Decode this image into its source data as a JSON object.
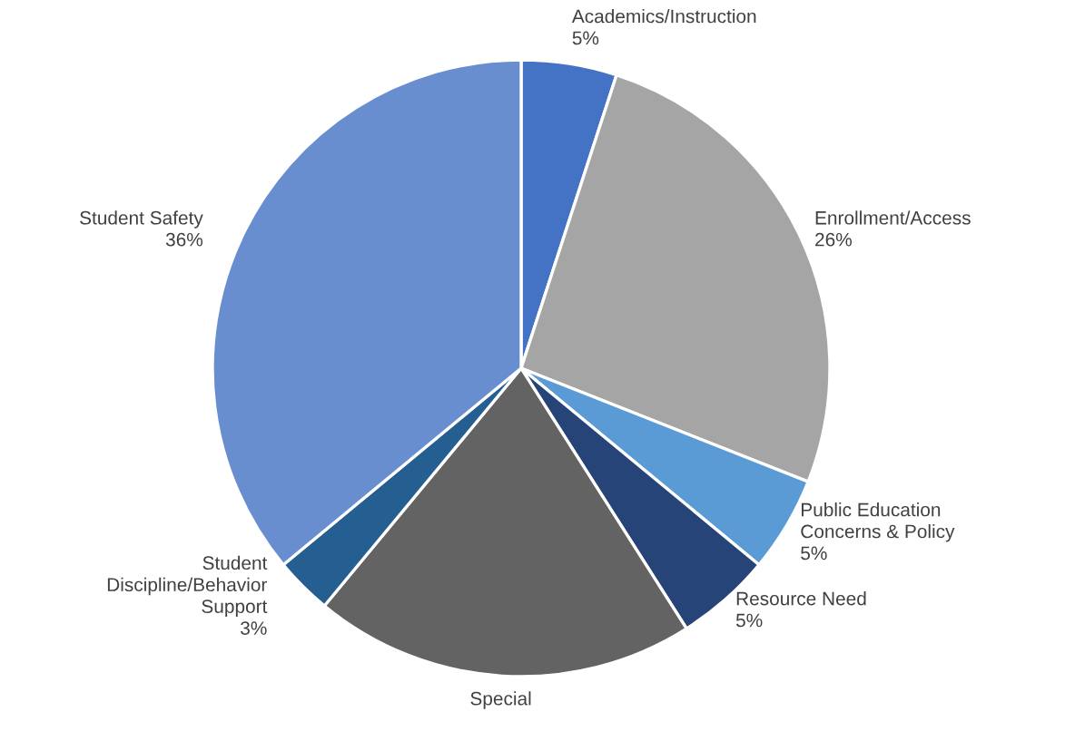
{
  "chart_data": {
    "type": "pie",
    "categories": [
      "Academics/Instruction",
      "Enrollment/Access",
      "Public Education\nConcerns & Policy",
      "Resource Need",
      "Special",
      "Student\nDiscipline/Behavior\nSupport",
      "Student Safety"
    ],
    "values": [
      5,
      26,
      5,
      5,
      20,
      3,
      36
    ],
    "value_labels": [
      "5%",
      "26%",
      "5%",
      "5%",
      null,
      "3%",
      "36%"
    ],
    "colors": [
      "#4472c4",
      "#a5a5a5",
      "#5b9bd5",
      "#264478",
      "#636363",
      "#255e91",
      "#698ed0"
    ],
    "legend": false
  }
}
